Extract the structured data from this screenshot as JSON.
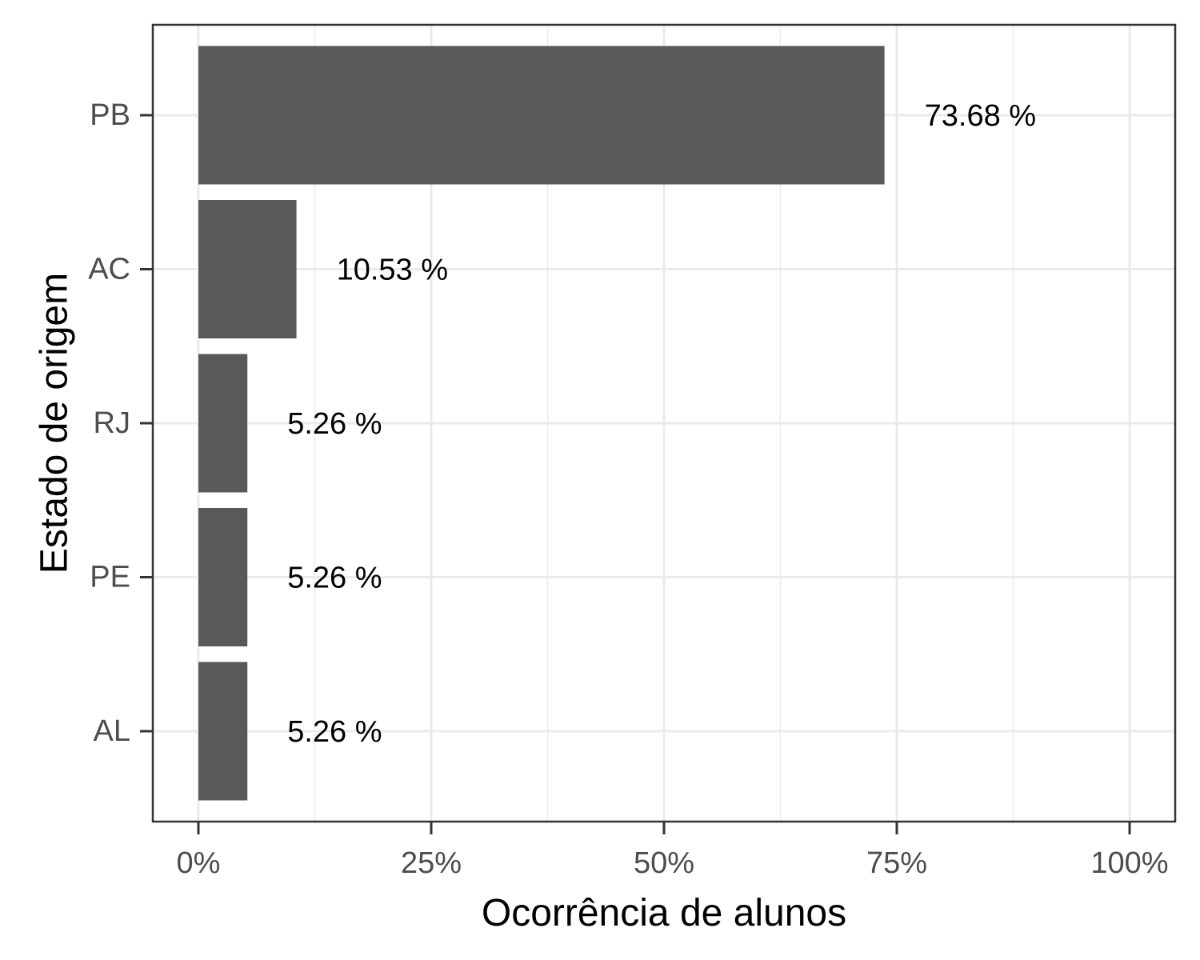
{
  "chart_data": {
    "type": "bar",
    "orientation": "horizontal",
    "categories": [
      "PB",
      "AC",
      "RJ",
      "PE",
      "AL"
    ],
    "values": [
      73.68,
      10.53,
      5.26,
      5.26,
      5.26
    ],
    "value_labels": [
      "73.68 %",
      "10.53 %",
      "5.26 %",
      "5.26 %",
      "5.26 %"
    ],
    "xlabel": "Ocorrência de alunos",
    "ylabel": "Estado de origem",
    "xlim": [
      0,
      100
    ],
    "x_ticks": [
      0,
      25,
      50,
      75,
      100
    ],
    "x_tick_labels": [
      "0%",
      "25%",
      "50%",
      "75%",
      "100%"
    ],
    "grid": true,
    "legend": "none",
    "colors": {
      "bar": "#595959",
      "grid": "#ebebeb",
      "panel_border": "#333333",
      "tick": "#333333"
    }
  }
}
